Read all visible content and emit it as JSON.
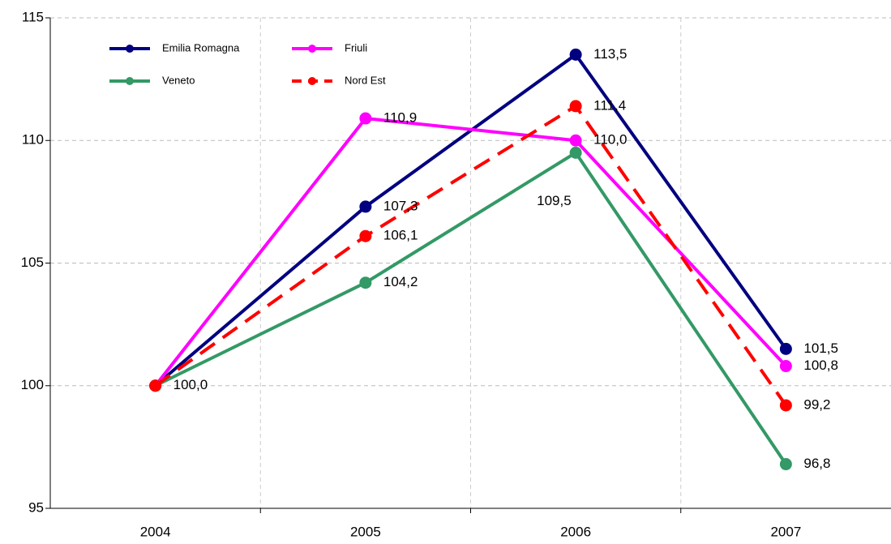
{
  "chart_data": {
    "type": "line",
    "categories": [
      "2004",
      "2005",
      "2006",
      "2007"
    ],
    "series": [
      {
        "name": "Emilia Romagna",
        "color": "#000080",
        "values": [
          100.0,
          107.3,
          113.5,
          101.5
        ],
        "value_labels": [
          null,
          "107,3",
          "113,5",
          "101,5"
        ]
      },
      {
        "name": "Friuli",
        "color": "#ff00ff",
        "values": [
          100.0,
          110.9,
          110.0,
          100.8
        ],
        "value_labels": [
          null,
          "110,9",
          "110,0",
          "100,8"
        ]
      },
      {
        "name": "Veneto",
        "color": "#339966",
        "values": [
          100.0,
          104.2,
          109.5,
          96.8
        ],
        "value_labels": [
          null,
          "104,2",
          "109,5",
          "96,8"
        ]
      },
      {
        "name": "Nord Est",
        "color": "#ff0000",
        "dashed": true,
        "values": [
          100.0,
          106.1,
          111.4,
          99.2
        ],
        "value_labels": [
          "100,0",
          "106,1",
          "111,4",
          "99,2"
        ]
      }
    ],
    "ylim": [
      95,
      115
    ],
    "yticks": [
      95,
      100,
      105,
      110,
      115
    ],
    "grid": true,
    "legend": "top-left"
  }
}
